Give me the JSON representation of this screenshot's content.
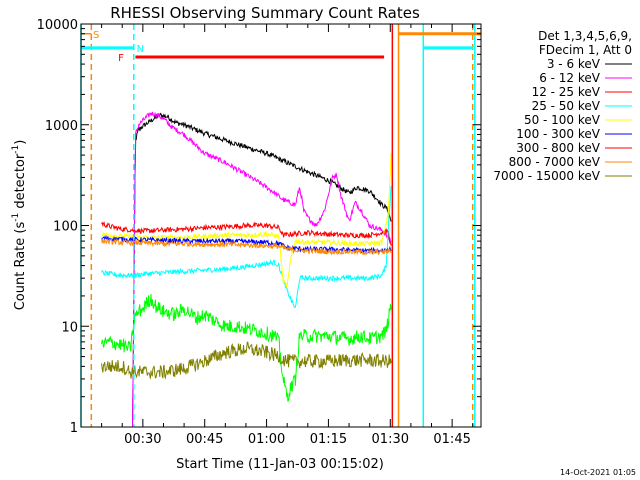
{
  "chart_data": {
    "type": "line",
    "title": "RHESSI Observing Summary Count Rates",
    "xlabel": "Start Time (11-Jan-03 00:15:02)",
    "ylabel_main": "Count Rate (s",
    "ylabel_sup1": "-1",
    "ylabel_mid": " detector",
    "ylabel_sup2": "-1",
    "ylabel_end": ")",
    "yscale": "log",
    "ylim": [
      1,
      10000
    ],
    "xlim_minutes": [
      15.0,
      112.0
    ],
    "x_ticks": [
      {
        "minute": 30,
        "label": "00:30"
      },
      {
        "minute": 45,
        "label": "00:45"
      },
      {
        "minute": 60,
        "label": "01:00"
      },
      {
        "minute": 75,
        "label": "01:15"
      },
      {
        "minute": 90,
        "label": "01:30"
      },
      {
        "minute": 105,
        "label": "01:45"
      }
    ],
    "y_ticks": [
      {
        "value": 1,
        "label": "1"
      },
      {
        "value": 10,
        "label": "10"
      },
      {
        "value": 100,
        "label": "100"
      },
      {
        "value": 1000,
        "label": "1000"
      },
      {
        "value": 10000,
        "label": "10000"
      }
    ],
    "legend": {
      "placement": "right",
      "header": [
        "Det 1,3,4,5,6,9,",
        "FDecim 1, Att 0"
      ]
    },
    "series": [
      {
        "name": "3 - 6 keV",
        "color": "#000000",
        "x": [
          27.5,
          28.2,
          29.0,
          30.5,
          32.0,
          34.0,
          36.0,
          38.0,
          40.0,
          45.0,
          50.0,
          55.0,
          60.0,
          65.0,
          70.0,
          75.0,
          80.0,
          82.0,
          85.0,
          87.0,
          88.0,
          89.0,
          89.5,
          90.2
        ],
        "y": [
          1,
          700,
          900,
          1000,
          1100,
          1250,
          1200,
          1050,
          1000,
          820,
          700,
          600,
          520,
          420,
          340,
          280,
          210,
          240,
          220,
          180,
          160,
          150,
          140,
          110
        ]
      },
      {
        "name": "6 - 12 keV",
        "color": "#ff00ff",
        "x": [
          27.5,
          28.2,
          29.0,
          30.5,
          32.0,
          33.5,
          35.0,
          37.0,
          40.0,
          45.0,
          50.0,
          55.0,
          60.0,
          62.0,
          64.0,
          67.0,
          68.0,
          68.5,
          69.0,
          70.0,
          72.0,
          74.0,
          76.0,
          77.0,
          78.0,
          80.0,
          81.5,
          83.0,
          85.0,
          88.0,
          90.2
        ],
        "y": [
          1,
          800,
          1000,
          1150,
          1300,
          1250,
          1150,
          950,
          800,
          520,
          420,
          320,
          240,
          210,
          180,
          160,
          240,
          190,
          140,
          120,
          100,
          140,
          300,
          320,
          200,
          110,
          170,
          140,
          100,
          90,
          70
        ]
      },
      {
        "name": "12 - 25 keV",
        "color": "#ff0000",
        "x": [
          20.0,
          22.0,
          25.0,
          28.0,
          30.0,
          35.0,
          40.0,
          45.0,
          50.0,
          55.0,
          60.0,
          63.0,
          64.0,
          66.0,
          70.0,
          75.0,
          80.0,
          85.0,
          88.0,
          89.5,
          90.2
        ],
        "y": [
          105,
          98,
          92,
          90,
          88,
          90,
          92,
          95,
          97,
          100,
          100,
          95,
          80,
          82,
          85,
          82,
          80,
          80,
          85,
          88,
          60
        ]
      },
      {
        "name": "25 - 50 keV",
        "color": "#00ffff",
        "x": [
          20.0,
          22.0,
          25.0,
          28.0,
          30.0,
          35.0,
          40.0,
          45.0,
          50.0,
          55.0,
          60.0,
          62.0,
          63.0,
          64.5,
          66.0,
          67.0,
          68.0,
          70.0,
          75.0,
          80.0,
          85.0,
          88.0,
          89.0,
          89.5,
          90.2
        ],
        "y": [
          34,
          33,
          32,
          32,
          33,
          34,
          35,
          36,
          37,
          39,
          42,
          43,
          40,
          25,
          18,
          15,
          30,
          30,
          30,
          30,
          30,
          32,
          40,
          90,
          250
        ]
      },
      {
        "name": "50 - 100 keV",
        "color": "#ffff00",
        "x": [
          20.0,
          25.0,
          30.0,
          35.0,
          40.0,
          45.0,
          50.0,
          55.0,
          60.0,
          63.0,
          64.0,
          65.0,
          66.0,
          67.0,
          70.0,
          75.0,
          80.0,
          85.0,
          88.0,
          89.5,
          90.2
        ],
        "y": [
          82,
          78,
          76,
          76,
          76,
          78,
          80,
          80,
          82,
          78,
          28,
          25,
          50,
          70,
          68,
          68,
          66,
          66,
          68,
          130,
          500
        ]
      },
      {
        "name": "100 - 300 keV",
        "color": "#0000ff",
        "x": [
          20.0,
          25.0,
          30.0,
          35.0,
          40.0,
          45.0,
          50.0,
          55.0,
          60.0,
          63.0,
          65.0,
          70.0,
          75.0,
          80.0,
          85.0,
          88.0,
          90.2
        ],
        "y": [
          75,
          73,
          72,
          71,
          70,
          70,
          70,
          69,
          68,
          66,
          60,
          58,
          58,
          57,
          56,
          57,
          58
        ]
      },
      {
        "name": "300 - 800 keV",
        "color": "#ff0000",
        "x": [],
        "y": []
      },
      {
        "name": "800 - 7000 keV",
        "color": "#ff8800",
        "x": [
          20.0,
          25.0,
          30.0,
          35.0,
          40.0,
          45.0,
          50.0,
          55.0,
          60.0,
          63.0,
          65.0,
          70.0,
          75.0,
          80.0,
          85.0,
          88.0,
          90.2
        ],
        "y": [
          70,
          68,
          67,
          66,
          66,
          65,
          65,
          64,
          63,
          62,
          58,
          56,
          55,
          55,
          54,
          55,
          56
        ]
      },
      {
        "name": "7000 - 15000 keV",
        "color": "#808000",
        "x": [
          20.0,
          25.0,
          27.0,
          30.0,
          35.0,
          40.0,
          45.0,
          50.0,
          55.0,
          60.0,
          63.0,
          65.0,
          70.0,
          75.0,
          80.0,
          85.0,
          88.0,
          90.2
        ],
        "y": [
          4,
          4,
          3.5,
          3.5,
          3.5,
          3.8,
          4.5,
          5.5,
          6.0,
          5.5,
          5,
          4.5,
          4.5,
          4.5,
          4.6,
          4.6,
          4.5,
          4.5
        ]
      },
      {
        "name": "",
        "color": "#00ff00",
        "x": [
          20.0,
          22.0,
          25.0,
          27.0,
          28.0,
          29.0,
          30.0,
          31.0,
          32.0,
          33.0,
          35.0,
          38.0,
          40.0,
          43.0,
          45.0,
          48.0,
          50.0,
          53.0,
          55.0,
          58.0,
          60.0,
          62.0,
          63.0,
          64.0,
          65.0,
          66.0,
          67.0,
          68.0,
          70.0,
          75.0,
          80.0,
          83.0,
          85.0,
          88.0,
          89.0,
          90.2
        ],
        "y": [
          6.5,
          7,
          6.5,
          6,
          12,
          14,
          15,
          17,
          19,
          16,
          14,
          13,
          15,
          12,
          13,
          11,
          10,
          10,
          9.5,
          9,
          8.5,
          8,
          7,
          3,
          2,
          2.5,
          3,
          8,
          8,
          8,
          7.5,
          8,
          7.5,
          8,
          9,
          16
        ]
      }
    ],
    "annotations": [
      {
        "text": "S",
        "color": "#ff8800"
      },
      {
        "text": "N",
        "color": "#00ffff"
      },
      {
        "text": "F",
        "color": "#ff0000"
      }
    ],
    "state_bars": [
      {
        "key": "S",
        "color": "#ff8800",
        "y_value": 8000,
        "segments": [
          [
            15.0,
            17.5
          ],
          [
            92.0,
            112.0
          ]
        ],
        "thickness": "thin-thick"
      },
      {
        "key": "N",
        "color": "#00ffff",
        "y_value": 5800,
        "segments": [
          [
            15.0,
            27.8
          ],
          [
            98.0,
            110.0
          ]
        ]
      },
      {
        "key": "F",
        "color": "#ff0000",
        "y_value": 4700,
        "segments": [
          [
            28.2,
            88.5
          ]
        ]
      }
    ],
    "vertical_markers": [
      {
        "minute": 15.0,
        "color": "#00ffff",
        "style": "solid"
      },
      {
        "minute": 17.5,
        "color": "#ff8800",
        "style": "dashed"
      },
      {
        "minute": 27.8,
        "color": "#00ffff",
        "style": "dashed"
      },
      {
        "minute": 90.5,
        "color": "#ff0000",
        "style": "solid"
      },
      {
        "minute": 92.0,
        "color": "#ff8800",
        "style": "solid"
      },
      {
        "minute": 98.0,
        "color": "#00ffff",
        "style": "solid"
      },
      {
        "minute": 110.0,
        "color": "#ff8800",
        "style": "dashed"
      },
      {
        "minute": 110.5,
        "color": "#00ffff",
        "style": "solid"
      }
    ]
  },
  "footer_timestamp": "14-Oct-2021 01:05"
}
